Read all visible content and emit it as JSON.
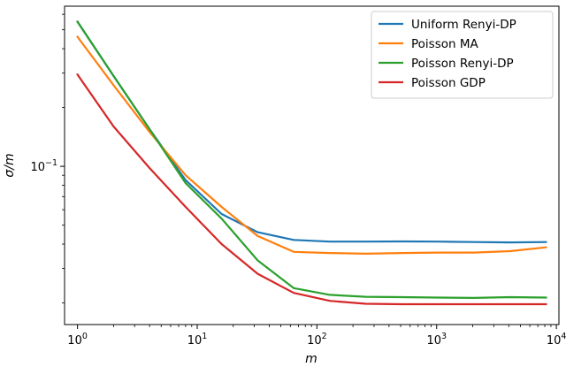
{
  "chart_data": {
    "type": "line",
    "xlabel": "m",
    "ylabel": "σ/m",
    "x_scale": "log",
    "y_scale": "log",
    "xlim": [
      0.78,
      10500
    ],
    "ylim": [
      0.0155,
      0.66
    ],
    "x_ticks": [
      {
        "value": 1,
        "base": "10",
        "exp": "0"
      },
      {
        "value": 10,
        "base": "10",
        "exp": "1"
      },
      {
        "value": 100,
        "base": "10",
        "exp": "2"
      },
      {
        "value": 1000,
        "base": "10",
        "exp": "3"
      },
      {
        "value": 10000,
        "base": "10",
        "exp": "4"
      }
    ],
    "y_ticks": [
      {
        "value": 0.1,
        "base": "10",
        "exp": "−1"
      }
    ],
    "grid": false,
    "legend": "top-right",
    "x": [
      1,
      2,
      4,
      8,
      16,
      32,
      64,
      128,
      256,
      512,
      1024,
      2048,
      4096,
      8192
    ],
    "series": [
      {
        "name": "Uniform Renyi-DP",
        "color": "#1f77b4",
        "values": [
          0.55,
          0.29,
          0.155,
          0.085,
          0.057,
          0.046,
          0.042,
          0.0412,
          0.0412,
          0.0413,
          0.0412,
          0.041,
          0.0408,
          0.041
        ]
      },
      {
        "name": "Poisson MA",
        "color": "#ff7f0e",
        "values": [
          0.46,
          0.26,
          0.15,
          0.09,
          0.062,
          0.044,
          0.0365,
          0.036,
          0.0357,
          0.036,
          0.0362,
          0.0362,
          0.0368,
          0.0385
        ]
      },
      {
        "name": "Poisson Renyi-DP",
        "color": "#2ca02c",
        "values": [
          0.55,
          0.29,
          0.155,
          0.082,
          0.054,
          0.033,
          0.0238,
          0.022,
          0.0215,
          0.0214,
          0.0213,
          0.0212,
          0.0214,
          0.0213
        ]
      },
      {
        "name": "Poisson GDP",
        "color": "#d62728",
        "values": [
          0.295,
          0.16,
          0.098,
          0.062,
          0.04,
          0.0282,
          0.0225,
          0.0205,
          0.0198,
          0.0197,
          0.0197,
          0.0197,
          0.0197,
          0.0197
        ]
      }
    ]
  }
}
